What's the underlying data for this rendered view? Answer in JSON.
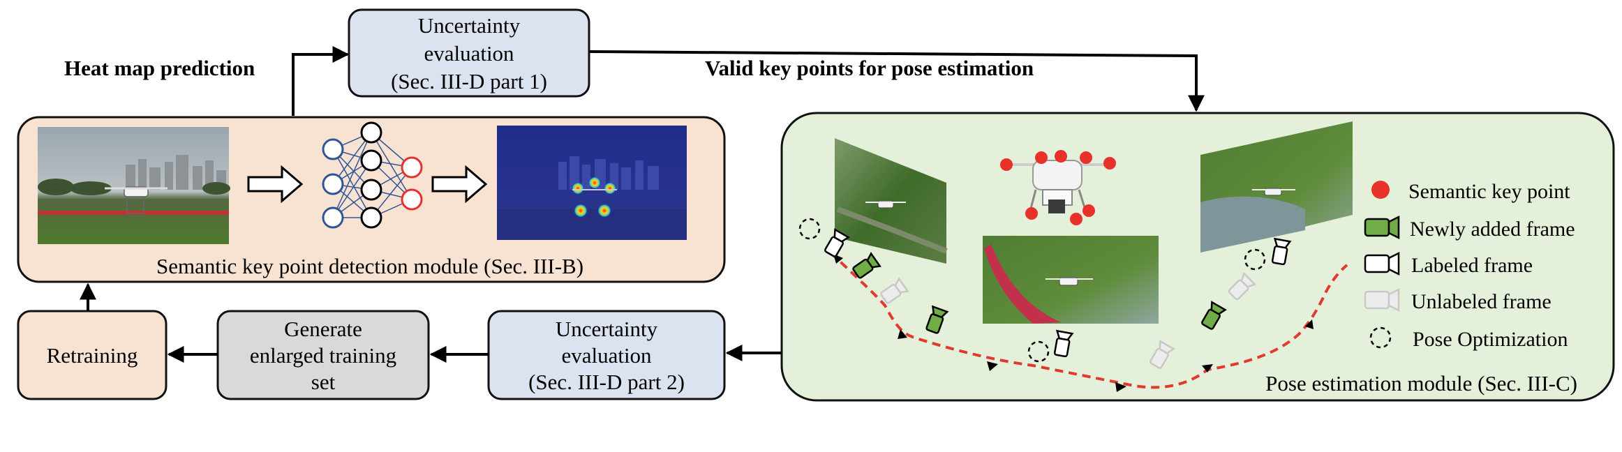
{
  "colors": {
    "detection_module_fill": "#f8e3d2",
    "pose_module_fill": "#e4f0d9",
    "uncertainty_fill": "#dbe3f1",
    "generate_fill": "#d9d9d9",
    "retraining_fill": "#f8e3d2",
    "keypoint_red": "#e8312b",
    "path_red": "#e03a2f",
    "new_frame_green": "#70ad47",
    "net_blue": "#2f5597",
    "net_red": "#e8312b"
  },
  "labels": {
    "heat_map_prediction": "Heat map prediction",
    "valid_key_points": "Valid key points for pose estimation",
    "uncertainty_top": [
      "Uncertainty",
      "evaluation",
      "(Sec. III-D part 1)"
    ],
    "uncertainty_bottom": [
      "Uncertainty",
      "evaluation",
      "(Sec. III-D part 2)"
    ],
    "generate": [
      "Generate",
      "enlarged training",
      "set"
    ],
    "retraining": "Retraining",
    "detection_module": "Semantic key point detection module (Sec. III-B)",
    "pose_module": "Pose estimation module (Sec. III-C)"
  },
  "legend": {
    "semantic_key_point": "Semantic key point",
    "newly_added_frame": "Newly added frame",
    "labeled_frame": "Labeled frame",
    "unlabeled_frame": "Unlabeled frame",
    "pose_optimization": "Pose Optimization"
  }
}
